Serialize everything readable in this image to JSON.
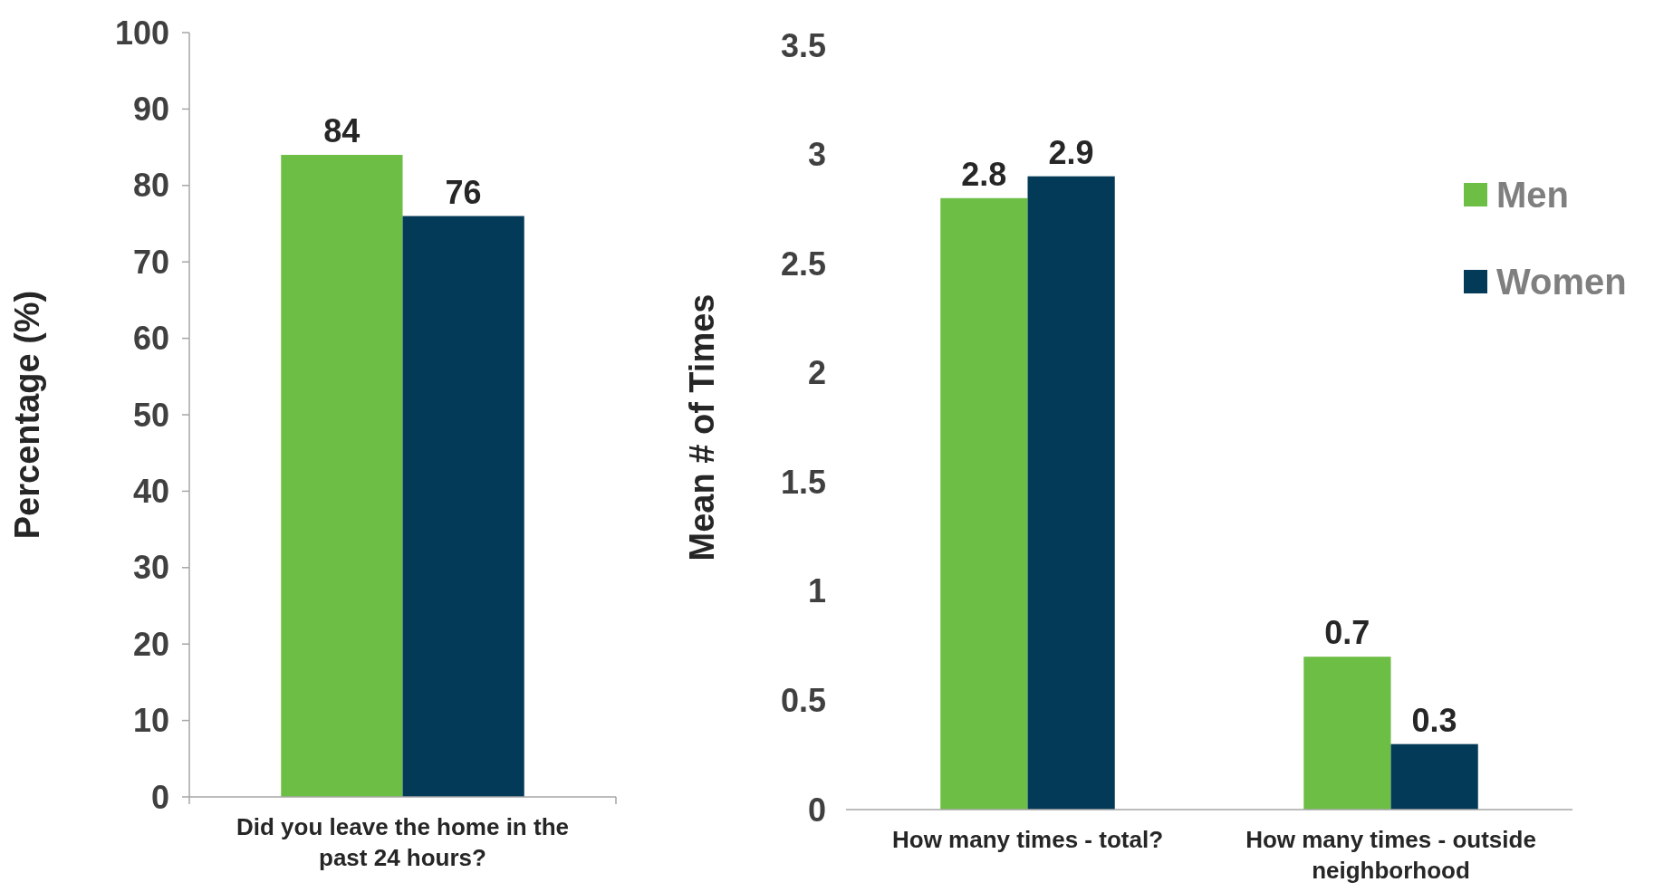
{
  "chart_data": [
    {
      "type": "bar",
      "ylabel": "Percentage (%)",
      "categories": [
        "Did you leave the home in the past 24 hours?"
      ],
      "series": [
        {
          "color": "#6cbe45",
          "values": [
            84
          ]
        },
        {
          "color": "#033a57",
          "values": [
            76
          ]
        }
      ],
      "ylim": [
        0,
        100
      ],
      "yticks": [
        0,
        10,
        20,
        30,
        40,
        50,
        60,
        70,
        80,
        90,
        100
      ],
      "data_labels": true,
      "legend": false
    },
    {
      "type": "bar",
      "ylabel": "Mean # of Times",
      "categories": [
        "How many times - total?",
        "How many times - outside neighborhood"
      ],
      "series": [
        {
          "name": "Men",
          "color": "#6cbe45",
          "values": [
            2.8,
            0.7
          ]
        },
        {
          "name": "Women",
          "color": "#033a57",
          "values": [
            2.9,
            0.3
          ]
        }
      ],
      "ylim": [
        0,
        3.5
      ],
      "yticks": [
        0,
        0.5,
        1,
        1.5,
        2,
        2.5,
        3,
        3.5
      ],
      "data_labels": true,
      "legend": "right"
    }
  ]
}
